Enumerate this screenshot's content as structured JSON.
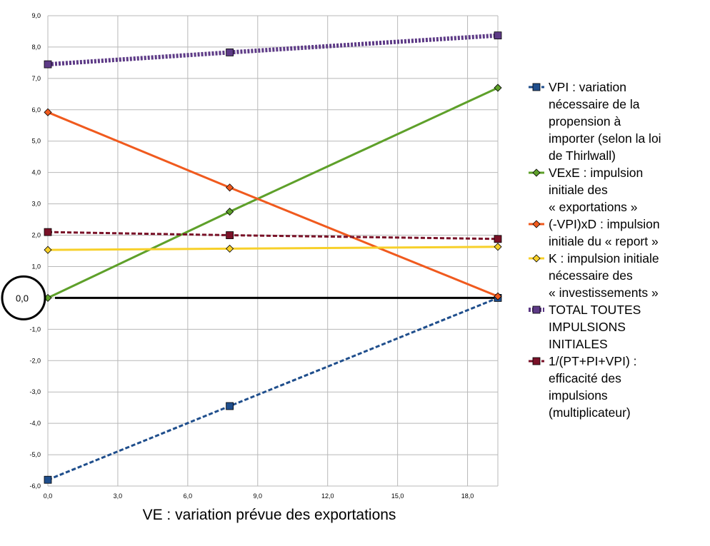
{
  "chart_data": {
    "type": "line",
    "title": "",
    "xlabel": "VE : variation prévue des exportations",
    "ylabel": "",
    "xlim": [
      0,
      19.3
    ],
    "ylim": [
      -6,
      9
    ],
    "x_ticks": [
      "0,0",
      "3,0",
      "6,0",
      "9,0",
      "12,0",
      "15,0",
      "18,0"
    ],
    "y_ticks": [
      "9,0",
      "8,0",
      "7,0",
      "6,0",
      "5,0",
      "4,0",
      "3,0",
      "2,0",
      "1,0",
      "0,0",
      "-1,0",
      "-2,0",
      "-3,0",
      "-4,0",
      "-5,0",
      "-6,0"
    ],
    "grid": true,
    "legend_position": "right",
    "zero_annotation": "0,0",
    "x": [
      0,
      7.8,
      19.3
    ],
    "series": [
      {
        "key": "vpi",
        "legend_lines": [
          "VPI : variation",
          "nécessaire de la",
          "propension à",
          "importer (selon la loi",
          "de Thirlwall)"
        ],
        "values": [
          -5.8,
          -3.45,
          0.0
        ],
        "color": "#1f4e8c",
        "dash": "dashed",
        "marker": "square"
      },
      {
        "key": "vexe",
        "legend_lines": [
          "VExE : impulsion",
          "initiale des",
          "« exportations »"
        ],
        "values": [
          0.0,
          2.75,
          6.7
        ],
        "color": "#5ea02a",
        "dash": "solid",
        "marker": "diamond"
      },
      {
        "key": "vpixd",
        "legend_lines": [
          "(-VPI)xD : impulsion",
          "initiale du « report »"
        ],
        "values": [
          5.92,
          3.52,
          0.05
        ],
        "color": "#f05a1e",
        "dash": "solid",
        "marker": "diamond"
      },
      {
        "key": "k",
        "legend_lines": [
          "K : impulsion initiale",
          "nécessaire des",
          "« investissements »"
        ],
        "values": [
          1.53,
          1.57,
          1.63
        ],
        "color": "#f7d02a",
        "dash": "solid",
        "marker": "diamond"
      },
      {
        "key": "total",
        "legend_lines": [
          "TOTAL TOUTES",
          "IMPULSIONS",
          "INITIALES"
        ],
        "values": [
          7.45,
          7.83,
          8.37
        ],
        "color": "#5d3a86",
        "dash": "dotted-thick",
        "marker": "square"
      },
      {
        "key": "multiplicateur",
        "legend_lines": [
          "1/(PT+PI+VPI) :",
          "efficacité des",
          "impulsions",
          "(multiplicateur)"
        ],
        "values": [
          2.1,
          2.0,
          1.88
        ],
        "color": "#7a1228",
        "dash": "dashed",
        "marker": "square"
      }
    ]
  }
}
